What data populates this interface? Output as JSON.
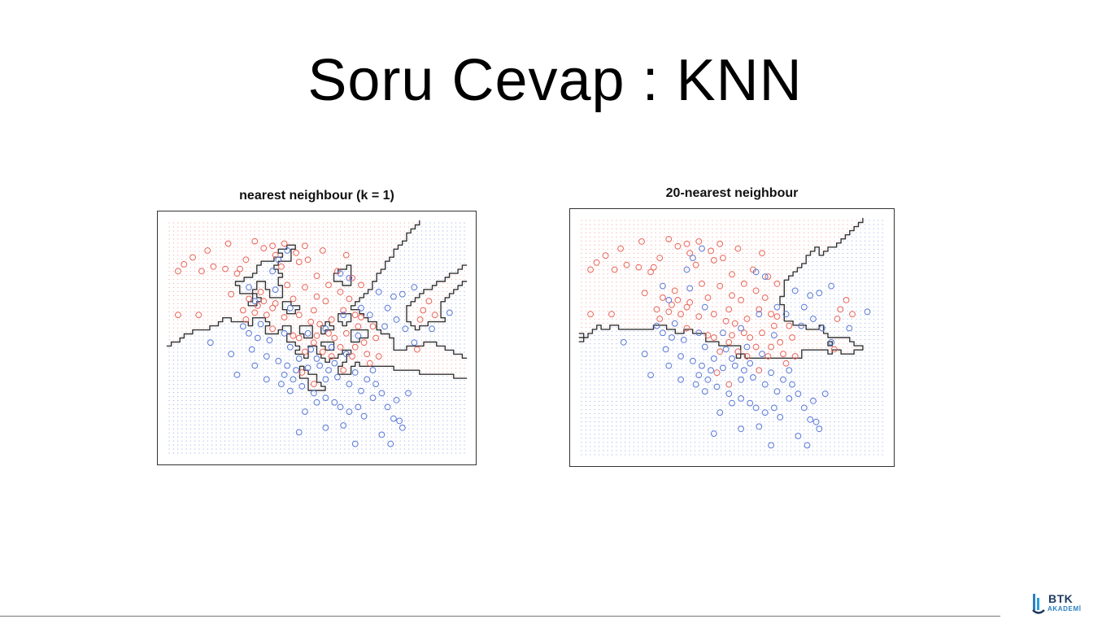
{
  "slide": {
    "title": "Soru Cevap : KNN"
  },
  "logo": {
    "name": "BTK",
    "subtitle": "AKADEMİ"
  },
  "colors": {
    "class_red": "#e8665a",
    "class_blue": "#5a79d6",
    "boundary": "#333333"
  },
  "panels": [
    {
      "id": "k1",
      "title": "nearest neighbour (k = 1)"
    },
    {
      "id": "k20",
      "title": "20-nearest neighbour"
    }
  ],
  "chart_data": {
    "type": "scatter",
    "xlim": [
      0,
      10
    ],
    "ylim": [
      0,
      10
    ],
    "series": [
      {
        "class": "red",
        "points": [
          [
            0.3,
            7.9
          ],
          [
            0.5,
            8.2
          ],
          [
            0.8,
            8.5
          ],
          [
            1.1,
            7.9
          ],
          [
            1.5,
            8.1
          ],
          [
            1.0,
            6.0
          ],
          [
            0.3,
            6.0
          ],
          [
            1.9,
            8.0
          ],
          [
            2.3,
            7.8
          ],
          [
            2.6,
            8.4
          ],
          [
            2.0,
            9.1
          ],
          [
            1.3,
            8.8
          ],
          [
            2.9,
            9.2
          ],
          [
            3.2,
            8.9
          ],
          [
            3.5,
            9.0
          ],
          [
            3.9,
            9.1
          ],
          [
            4.3,
            8.7
          ],
          [
            4.7,
            8.4
          ],
          [
            4.6,
            9.0
          ],
          [
            3.8,
            8.1
          ],
          [
            4.0,
            7.3
          ],
          [
            3.6,
            6.5
          ],
          [
            3.1,
            7.0
          ],
          [
            2.7,
            6.7
          ],
          [
            3.3,
            6.0
          ],
          [
            4.2,
            6.7
          ],
          [
            4.6,
            7.2
          ],
          [
            5.0,
            6.8
          ],
          [
            5.4,
            7.3
          ],
          [
            5.3,
            6.6
          ],
          [
            5.8,
            7.0
          ],
          [
            6.1,
            6.7
          ],
          [
            5.9,
            6.2
          ],
          [
            6.3,
            6.0
          ],
          [
            5.5,
            5.8
          ],
          [
            5.1,
            5.6
          ],
          [
            4.9,
            6.2
          ],
          [
            4.4,
            6.0
          ],
          [
            3.9,
            5.9
          ],
          [
            3.5,
            6.3
          ],
          [
            3.0,
            6.4
          ],
          [
            2.5,
            6.2
          ],
          [
            2.1,
            6.9
          ],
          [
            6.5,
            7.3
          ],
          [
            6.2,
            7.6
          ],
          [
            5.7,
            7.9
          ],
          [
            5.0,
            7.7
          ],
          [
            4.4,
            8.3
          ],
          [
            6.0,
            8.6
          ],
          [
            5.2,
            8.8
          ],
          [
            6.4,
            5.5
          ],
          [
            6.0,
            5.2
          ],
          [
            5.6,
            5.0
          ],
          [
            5.8,
            4.6
          ],
          [
            6.3,
            4.6
          ],
          [
            6.6,
            4.8
          ],
          [
            6.9,
            5.5
          ],
          [
            7.0,
            5.0
          ],
          [
            5.2,
            4.4
          ],
          [
            4.6,
            4.4
          ],
          [
            4.4,
            5.0
          ],
          [
            4.9,
            4.8
          ],
          [
            5.4,
            5.2
          ],
          [
            6.7,
            4.3
          ],
          [
            3.6,
            8.6
          ],
          [
            2.4,
            8.0
          ],
          [
            8.6,
            6.2
          ],
          [
            8.8,
            6.6
          ],
          [
            9.0,
            6.0
          ],
          [
            8.5,
            5.8
          ],
          [
            8.4,
            4.5
          ],
          [
            6.8,
            3.9
          ],
          [
            5.9,
            3.6
          ],
          [
            4.5,
            3.5
          ],
          [
            4.9,
            3.0
          ],
          [
            2.9,
            6.1
          ],
          [
            3.2,
            6.6
          ],
          [
            4.8,
            5.7
          ],
          [
            6.5,
            5.9
          ],
          [
            7.1,
            4.2
          ],
          [
            6.2,
            4.2
          ],
          [
            5.5,
            4.2
          ],
          [
            3.5,
            5.4
          ],
          [
            4.2,
            5.1
          ],
          [
            5.0,
            5.1
          ],
          [
            2.6,
            5.8
          ]
        ]
      },
      {
        "class": "blue",
        "points": [
          [
            2.7,
            5.2
          ],
          [
            3.1,
            5.6
          ],
          [
            3.4,
            4.9
          ],
          [
            2.8,
            4.5
          ],
          [
            3.9,
            5.2
          ],
          [
            4.1,
            4.6
          ],
          [
            4.4,
            4.1
          ],
          [
            3.3,
            4.2
          ],
          [
            3.7,
            4.0
          ],
          [
            4.0,
            3.8
          ],
          [
            4.3,
            3.6
          ],
          [
            4.7,
            3.7
          ],
          [
            5.1,
            3.8
          ],
          [
            5.4,
            3.6
          ],
          [
            5.6,
            3.9
          ],
          [
            5.3,
            3.2
          ],
          [
            4.9,
            2.6
          ],
          [
            5.0,
            2.2
          ],
          [
            5.3,
            2.4
          ],
          [
            5.6,
            2.2
          ],
          [
            5.8,
            2.0
          ],
          [
            6.1,
            1.8
          ],
          [
            6.4,
            2.0
          ],
          [
            6.9,
            2.4
          ],
          [
            7.2,
            2.6
          ],
          [
            7.4,
            2.0
          ],
          [
            7.6,
            1.5
          ],
          [
            7.8,
            1.4
          ],
          [
            7.9,
            1.1
          ],
          [
            7.2,
            0.8
          ],
          [
            7.5,
            0.4
          ],
          [
            5.3,
            1.1
          ],
          [
            4.6,
            1.8
          ],
          [
            4.1,
            2.7
          ],
          [
            3.8,
            3.0
          ],
          [
            3.3,
            3.2
          ],
          [
            2.9,
            3.8
          ],
          [
            2.3,
            3.4
          ],
          [
            2.1,
            4.3
          ],
          [
            1.4,
            4.8
          ],
          [
            5.9,
            6.0
          ],
          [
            6.5,
            6.3
          ],
          [
            6.8,
            6.0
          ],
          [
            7.4,
            6.3
          ],
          [
            7.6,
            6.8
          ],
          [
            7.9,
            6.9
          ],
          [
            8.3,
            7.2
          ],
          [
            7.3,
            5.5
          ],
          [
            7.7,
            5.8
          ],
          [
            8.0,
            5.4
          ],
          [
            8.9,
            5.4
          ],
          [
            9.5,
            6.1
          ],
          [
            6.1,
            7.6
          ],
          [
            5.8,
            7.8
          ],
          [
            4.0,
            8.8
          ],
          [
            3.7,
            8.4
          ],
          [
            3.5,
            7.9
          ],
          [
            2.7,
            7.2
          ],
          [
            2.9,
            6.6
          ],
          [
            3.6,
            7.1
          ],
          [
            4.1,
            6.3
          ],
          [
            4.7,
            5.2
          ],
          [
            5.3,
            5.4
          ],
          [
            5.7,
            3.3
          ],
          [
            6.3,
            3.5
          ],
          [
            6.5,
            2.7
          ],
          [
            6.7,
            3.2
          ],
          [
            6.1,
            3.0
          ],
          [
            6.9,
            3.6
          ],
          [
            4.5,
            2.9
          ],
          [
            3.9,
            3.4
          ],
          [
            4.2,
            3.2
          ],
          [
            5.0,
            4.1
          ],
          [
            5.5,
            4.6
          ],
          [
            7.0,
            3.0
          ],
          [
            7.7,
            2.3
          ],
          [
            8.1,
            2.6
          ],
          [
            6.6,
            1.6
          ],
          [
            5.9,
            1.2
          ],
          [
            4.4,
            0.9
          ],
          [
            6.3,
            0.4
          ],
          [
            8.3,
            4.8
          ],
          [
            7.1,
            7.0
          ],
          [
            6.4,
            5.1
          ],
          [
            6.0,
            4.3
          ],
          [
            4.8,
            4.5
          ],
          [
            2.5,
            5.5
          ],
          [
            3.0,
            5.0
          ]
        ]
      }
    ]
  }
}
